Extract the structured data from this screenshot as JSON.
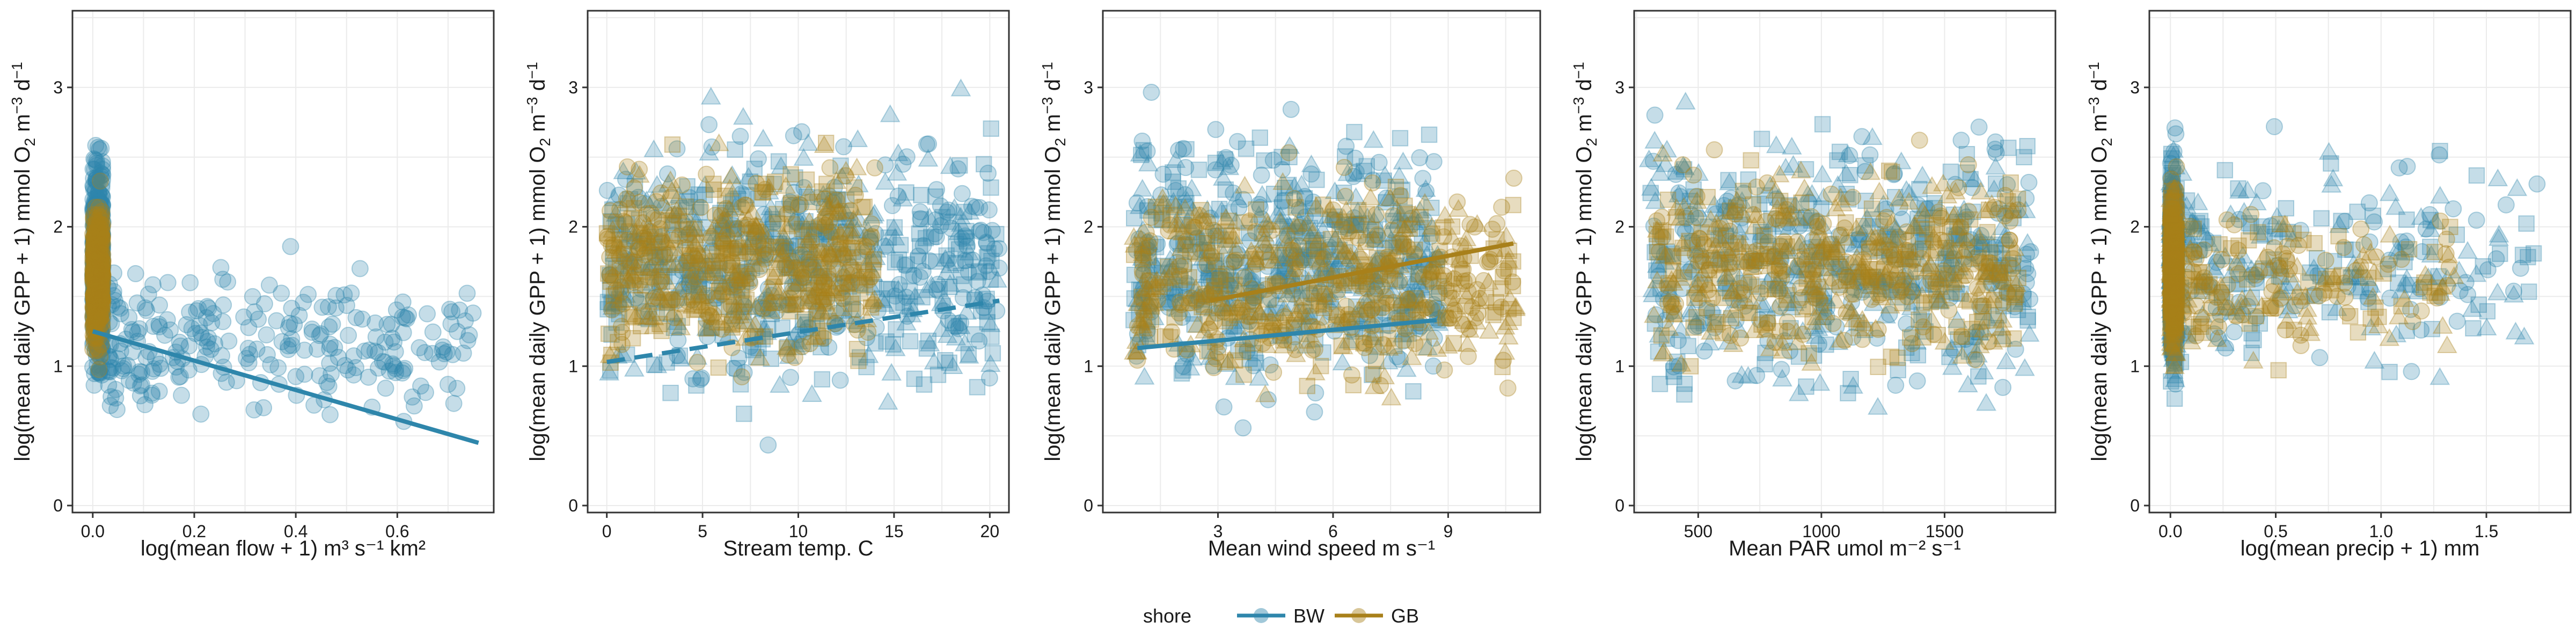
{
  "colors": {
    "BW": "#2E86AB",
    "GB": "#A8801A",
    "grid": "#EBEBEB",
    "frame": "#333333"
  },
  "legend": {
    "title": "shore",
    "entries": [
      "BW",
      "GB"
    ]
  },
  "shared": {
    "ylabel_prefix": "log(mean daily GPP + 1) mmol O",
    "ylabel_sub": "2",
    "ylabel_mid": " m",
    "ylabel_sup1": "−3",
    "ylabel_end": " d",
    "ylabel_sup2": "−1"
  },
  "chart_data": [
    {
      "type": "scatter",
      "xlabel": "log(mean flow + 1) m³ s⁻¹ km²",
      "xlim": [
        -0.04,
        0.79
      ],
      "ylim": [
        -0.05,
        3.55
      ],
      "xticks": [
        0.0,
        0.2,
        0.4,
        0.6
      ],
      "xtick_labels": [
        "0.0",
        "0.2",
        "0.4",
        "0.6"
      ],
      "yticks": [
        0,
        1,
        2,
        3
      ],
      "ytick_labels": [
        "0",
        "1",
        "2",
        "3"
      ],
      "marker_shapes": [
        "circle"
      ],
      "series": [
        {
          "name": "BW",
          "cloud": {
            "count": 620,
            "x_range": [
              0.0,
              0.02
            ],
            "y_range": [
              0.1,
              3.35
            ]
          },
          "spread": {
            "count": 260,
            "x_range": [
              0.03,
              0.75
            ],
            "y_range": [
              0.15,
              2.2
            ]
          },
          "fit": {
            "x": [
              0.0,
              0.76
            ],
            "y": [
              1.25,
              0.45
            ],
            "style": "solid"
          }
        },
        {
          "name": "GB",
          "cloud": {
            "count": 420,
            "x_range": [
              0.0,
              0.02
            ],
            "y_range": [
              0.6,
              2.7
            ]
          }
        }
      ]
    },
    {
      "type": "scatter",
      "xlabel": "Stream temp. C",
      "xlim": [
        -1,
        21
      ],
      "ylim": [
        -0.05,
        3.55
      ],
      "xticks": [
        0,
        5,
        10,
        15,
        20
      ],
      "xtick_labels": [
        "0",
        "5",
        "10",
        "15",
        "20"
      ],
      "yticks": [
        0,
        1,
        2,
        3
      ],
      "ytick_labels": [
        "0",
        "1",
        "2",
        "3"
      ],
      "marker_shapes": [
        "circle",
        "triangle",
        "square"
      ],
      "series": [
        {
          "name": "BW",
          "cloud": {
            "count": 700,
            "x_range": [
              0,
              20.5
            ],
            "y_range": [
              0.1,
              3.4
            ]
          },
          "fit": {
            "x": [
              0,
              20.5
            ],
            "y": [
              1.03,
              1.47
            ],
            "style": "dashed"
          }
        },
        {
          "name": "GB",
          "cloud": {
            "count": 520,
            "x_range": [
              0,
              14
            ],
            "y_range": [
              0.5,
              3.0
            ]
          }
        }
      ]
    },
    {
      "type": "scatter",
      "xlabel": "Mean wind speed m s⁻¹",
      "xlim": [
        0.0,
        11.4
      ],
      "ylim": [
        -0.05,
        3.55
      ],
      "xticks": [
        3,
        6,
        9
      ],
      "xtick_labels": [
        "3",
        "6",
        "9"
      ],
      "yticks": [
        0,
        1,
        2,
        3
      ],
      "ytick_labels": [
        "0",
        "1",
        "2",
        "3"
      ],
      "marker_shapes": [
        "circle",
        "triangle",
        "square"
      ],
      "series": [
        {
          "name": "BW",
          "cloud": {
            "count": 620,
            "x_range": [
              0.8,
              8.8
            ],
            "y_range": [
              0.1,
              3.4
            ]
          },
          "fit": {
            "x": [
              0.9,
              8.7
            ],
            "y": [
              1.13,
              1.33
            ],
            "style": "solid"
          }
        },
        {
          "name": "GB",
          "cloud": {
            "count": 560,
            "x_range": [
              0.8,
              10.8
            ],
            "y_range": [
              0.3,
              2.9
            ]
          },
          "fit": {
            "x": [
              2.8,
              10.7
            ],
            "y": [
              1.47,
              1.88
            ],
            "style": "solid"
          }
        }
      ]
    },
    {
      "type": "scatter",
      "xlabel": "Mean PAR umol m⁻² s⁻¹",
      "xlim": [
        240,
        1950
      ],
      "ylim": [
        -0.05,
        3.55
      ],
      "xticks": [
        500,
        1000,
        1500
      ],
      "xtick_labels": [
        "500",
        "1000",
        "1500"
      ],
      "yticks": [
        0,
        1,
        2,
        3
      ],
      "ytick_labels": [
        "0",
        "1",
        "2",
        "3"
      ],
      "marker_shapes": [
        "circle",
        "triangle",
        "square"
      ],
      "series": [
        {
          "name": "BW",
          "cloud": {
            "count": 560,
            "x_range": [
              300,
              1850
            ],
            "y_range": [
              0.1,
              3.4
            ]
          }
        },
        {
          "name": "GB",
          "cloud": {
            "count": 520,
            "x_range": [
              320,
              1800
            ],
            "y_range": [
              0.5,
              3.0
            ]
          }
        }
      ]
    },
    {
      "type": "scatter",
      "xlabel": "log(mean precip + 1) mm",
      "xlim": [
        -0.1,
        1.9
      ],
      "ylim": [
        -0.05,
        3.55
      ],
      "xticks": [
        0.0,
        0.5,
        1.0,
        1.5
      ],
      "xtick_labels": [
        "0.0",
        "0.5",
        "1.0",
        "1.5"
      ],
      "yticks": [
        0,
        1,
        2,
        3
      ],
      "ytick_labels": [
        "0",
        "1",
        "2",
        "3"
      ],
      "marker_shapes": [
        "circle",
        "triangle",
        "square"
      ],
      "series": [
        {
          "name": "BW",
          "cloud": {
            "count": 600,
            "x_range": [
              0.0,
              0.03
            ],
            "y_range": [
              0.1,
              3.35
            ]
          },
          "spread": {
            "count": 240,
            "x_range": [
              0.05,
              1.75
            ],
            "y_range": [
              0.2,
              3.3
            ]
          }
        },
        {
          "name": "GB",
          "cloud": {
            "count": 420,
            "x_range": [
              0.0,
              0.03
            ],
            "y_range": [
              0.5,
              2.9
            ]
          },
          "spread": {
            "count": 180,
            "x_range": [
              0.05,
              1.35
            ],
            "y_range": [
              0.6,
              2.6
            ]
          }
        }
      ]
    }
  ]
}
